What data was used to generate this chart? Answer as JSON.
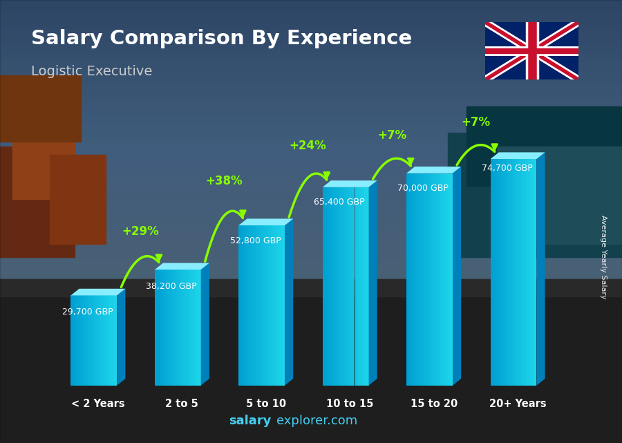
{
  "categories": [
    "< 2 Years",
    "2 to 5",
    "5 to 10",
    "10 to 15",
    "15 to 20",
    "20+ Years"
  ],
  "values": [
    29700,
    38200,
    52800,
    65400,
    70000,
    74700
  ],
  "labels": [
    "29,700 GBP",
    "38,200 GBP",
    "52,800 GBP",
    "65,400 GBP",
    "70,000 GBP",
    "74,700 GBP"
  ],
  "pct_changes": [
    "+29%",
    "+38%",
    "+24%",
    "+7%",
    "+7%"
  ],
  "title_main": "Salary Comparison By Experience",
  "title_sub": "Logistic Executive",
  "watermark_bold": "salary",
  "watermark_normal": "explorer.com",
  "ylabel_side": "Average Yearly Salary",
  "bar_color_main": "#00BFFF",
  "bar_color_light": "#55DEFF",
  "bar_color_dark": "#0090CC",
  "bar_color_top": "#88EEFF",
  "bg_top": "#4a7aaa",
  "bg_bottom": "#1a1a1a",
  "arrow_color": "#88FF00",
  "pct_color": "#88FF00",
  "label_color": "#FFFFFF",
  "title_color": "#FFFFFF",
  "sub_color": "#CCCCCC",
  "ylim_data": 74700,
  "ylim_display": 95000,
  "bar_width": 0.55,
  "bar_spacing": 1.0
}
